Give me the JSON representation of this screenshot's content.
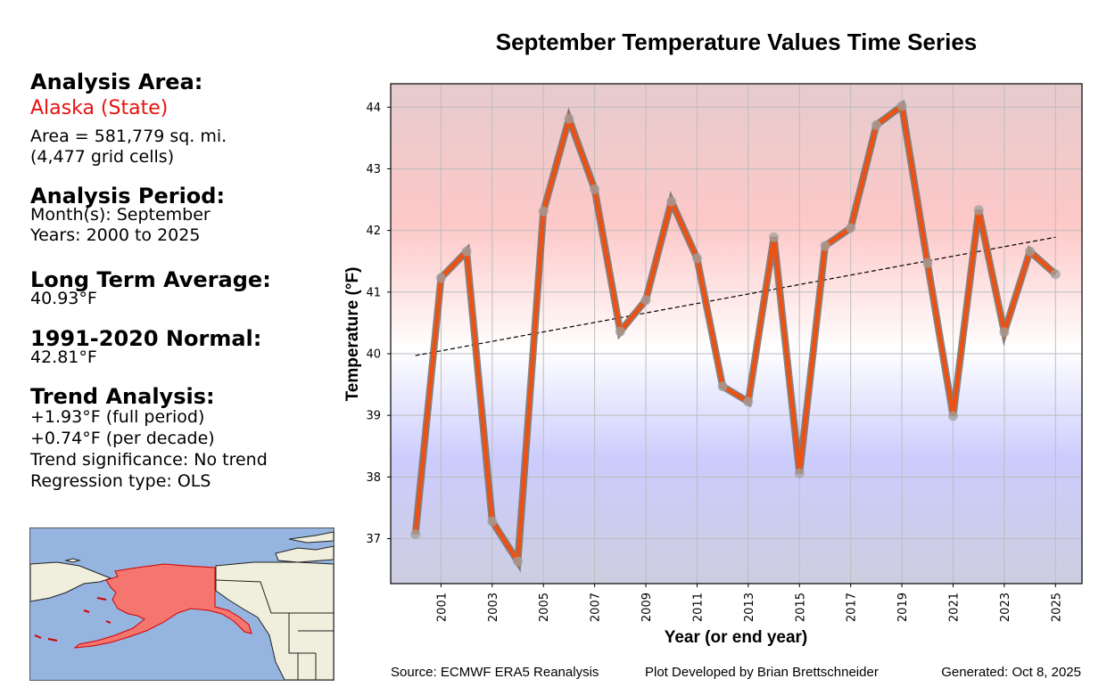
{
  "panel": {
    "area_heading": "Analysis Area:",
    "area_name": "Alaska (State)",
    "area_size": "Area = 581,779 sq. mi.",
    "grid_cells": "(4,477 grid cells)",
    "period_heading": "Analysis Period:",
    "months": "Month(s): September",
    "years": "Years: 2000 to 2025",
    "lta_heading": "Long Term Average:",
    "lta_value": "40.93°F",
    "normal_heading": "1991-2020 Normal:",
    "normal_value": "42.81°F",
    "trend_heading": "Trend Analysis:",
    "trend_full": "+1.93°F (full period)",
    "trend_decade": "+0.74°F (per decade)",
    "trend_sig": "Trend significance: No trend",
    "regression": "Regression type: OLS"
  },
  "footer": {
    "source": "Source: ECMWF ERA5 Reanalysis",
    "developer": "Plot Developed by Brian Brettschneider",
    "generated": "Generated: Oct 8, 2025"
  },
  "colors": {
    "line": "#f0500f",
    "line_outline": "#707070",
    "marker": "#a0a0a0",
    "grid": "#bdbdbd",
    "highlight_region": "#f4766e",
    "ocean": "#95b4e0",
    "land": "#f0eedc"
  },
  "chart_data": {
    "type": "line",
    "title": "September Temperature Values Time Series",
    "xlabel": "Year (or end year)",
    "ylabel": "Temperature (°F)",
    "xlim": [
      1999.0,
      2026.0
    ],
    "ylim": [
      36.27,
      44.38
    ],
    "grid": true,
    "x_ticks": [
      "2001",
      "2003",
      "2005",
      "2007",
      "2009",
      "2011",
      "2013",
      "2015",
      "2017",
      "2019",
      "2021",
      "2023",
      "2025"
    ],
    "y_ticks": [
      "37",
      "38",
      "39",
      "40",
      "41",
      "42",
      "43",
      "44"
    ],
    "x": [
      2000,
      2001,
      2002,
      2003,
      2004,
      2005,
      2006,
      2007,
      2008,
      2009,
      2010,
      2011,
      2012,
      2013,
      2014,
      2015,
      2016,
      2017,
      2018,
      2019,
      2020,
      2021,
      2022,
      2023,
      2024,
      2025
    ],
    "series": [
      {
        "name": "September Temperature",
        "values": [
          37.07,
          41.23,
          41.66,
          37.28,
          36.63,
          42.31,
          43.81,
          42.67,
          40.36,
          40.87,
          42.47,
          41.55,
          39.47,
          39.22,
          41.89,
          38.06,
          41.75,
          42.04,
          43.71,
          44.02,
          41.47,
          38.99,
          42.33,
          40.35,
          41.66,
          41.29
        ]
      }
    ],
    "trend": {
      "name": "OLS trend",
      "start": [
        2000,
        39.97
      ],
      "end": [
        2025,
        41.89
      ]
    }
  }
}
